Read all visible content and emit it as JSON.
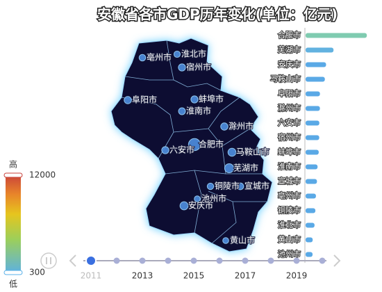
{
  "title": "安徽省各市GDP历年变化(单位：亿元)",
  "visual_map": {
    "max": 12000,
    "min": 300,
    "high": "高",
    "low": "低"
  },
  "timeline": {
    "years": [
      2011,
      2012,
      2013,
      2014,
      2015,
      2016,
      2017,
      2018,
      2019,
      2020
    ],
    "current": 2011
  },
  "chart_data": {
    "type": "bar",
    "orientation": "horizontal",
    "categories": [
      "合肥市",
      "芜湖市",
      "安庆市",
      "马鞍山市",
      "阜阳市",
      "滁州市",
      "六安市",
      "宿州市",
      "蚌埠市",
      "淮南市",
      "宣城市",
      "亳州市",
      "铜陵市",
      "淮北市",
      "黄山市",
      "池州市"
    ],
    "values": [
      3636,
      1658,
      1216,
      1144,
      853,
      851,
      816,
      809,
      780,
      711,
      675,
      615,
      581,
      531,
      422,
      414
    ],
    "colors": [
      "#7fcbb0",
      "#62b2e0",
      "#5aa9e6",
      "#5aa9e6",
      "#5aa9e6",
      "#5aa9e6",
      "#5aa9e6",
      "#5aa9e6",
      "#5aa9e6",
      "#5aa9e6",
      "#5aa9e6",
      "#5aa9e6",
      "#5aa9e6",
      "#5aa9e6",
      "#5aa9e6",
      "#5aa9e6"
    ],
    "xlim": [
      0,
      4000
    ]
  }
}
